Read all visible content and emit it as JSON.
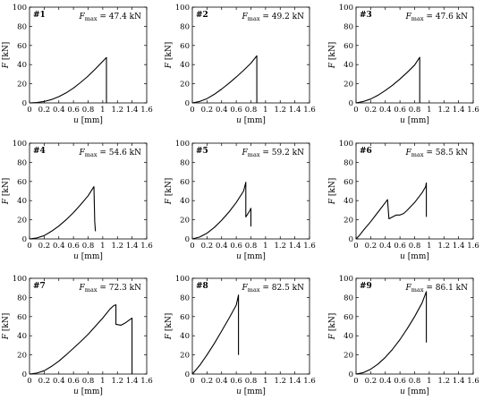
{
  "chart_data": [
    {
      "type": "line",
      "id": "#1",
      "panel_label": "#1",
      "fmax_prefix": "F",
      "fmax_subscript": "max",
      "fmax_value": "= 47.4 kN",
      "xlabel_var": "u",
      "xlabel_unit": " [mm]",
      "ylabel_var": "F",
      "ylabel_unit": " [kN]",
      "xlim": [
        0,
        1.6
      ],
      "ylim": [
        0,
        100
      ],
      "xticks": [
        "0",
        "0.2",
        "0.4",
        "0.6",
        "0.8",
        "1",
        "1.2",
        "1.4",
        "1.6"
      ],
      "yticks": [
        "0",
        "20",
        "40",
        "60",
        "80",
        "100"
      ],
      "grid": false,
      "x": [
        0,
        0.1,
        0.2,
        0.3,
        0.4,
        0.5,
        0.6,
        0.7,
        0.8,
        0.9,
        1.0,
        1.05,
        1.05
      ],
      "y": [
        0,
        0.5,
        1.5,
        3.5,
        6.5,
        10.5,
        15.5,
        21.5,
        28,
        35.5,
        43.5,
        47.4,
        0
      ]
    },
    {
      "type": "line",
      "id": "#2",
      "panel_label": "#2",
      "fmax_prefix": "F",
      "fmax_subscript": "max",
      "fmax_value": "= 49.2 kN",
      "xlabel_var": "u",
      "xlabel_unit": " [mm]",
      "ylabel_var": "F",
      "ylabel_unit": " [kN]",
      "xlim": [
        0,
        1.6
      ],
      "ylim": [
        0,
        100
      ],
      "xticks": [
        "0",
        "0.2",
        "0.4",
        "0.6",
        "0.8",
        "1",
        "1.2",
        "1.4",
        "1.6"
      ],
      "yticks": [
        "0",
        "20",
        "40",
        "60",
        "80",
        "100"
      ],
      "grid": false,
      "x": [
        0,
        0.1,
        0.2,
        0.3,
        0.4,
        0.5,
        0.6,
        0.7,
        0.8,
        0.88,
        0.88
      ],
      "y": [
        0,
        1.5,
        4.5,
        9,
        14.5,
        20.5,
        27,
        34,
        41.5,
        49.2,
        0
      ]
    },
    {
      "type": "line",
      "id": "#3",
      "panel_label": "#3",
      "fmax_prefix": "F",
      "fmax_subscript": "max",
      "fmax_value": "= 47.6 kN",
      "xlabel_var": "u",
      "xlabel_unit": " [mm]",
      "ylabel_var": "F",
      "ylabel_unit": " [kN]",
      "xlim": [
        0,
        1.6
      ],
      "ylim": [
        0,
        100
      ],
      "xticks": [
        "0",
        "0.2",
        "0.4",
        "0.6",
        "0.8",
        "1",
        "1.2",
        "1.4",
        "1.6"
      ],
      "yticks": [
        "0",
        "20",
        "40",
        "60",
        "80",
        "100"
      ],
      "grid": false,
      "x": [
        0,
        0.1,
        0.2,
        0.3,
        0.4,
        0.5,
        0.6,
        0.7,
        0.8,
        0.87,
        0.87
      ],
      "y": [
        0,
        1.5,
        4,
        8,
        13,
        18.5,
        25,
        32,
        39.5,
        47.6,
        0
      ]
    },
    {
      "type": "line",
      "id": "#4",
      "panel_label": "#4",
      "fmax_prefix": "F",
      "fmax_subscript": "max",
      "fmax_value": "= 54.6 kN",
      "xlabel_var": "u",
      "xlabel_unit": " [mm]",
      "ylabel_var": "F",
      "ylabel_unit": " [kN]",
      "xlim": [
        0,
        1.6
      ],
      "ylim": [
        0,
        100
      ],
      "xticks": [
        "0",
        "0.2",
        "0.4",
        "0.6",
        "0.8",
        "1",
        "1.2",
        "1.4",
        "1.6"
      ],
      "yticks": [
        "0",
        "20",
        "40",
        "60",
        "80",
        "100"
      ],
      "grid": false,
      "x": [
        0,
        0.1,
        0.2,
        0.3,
        0.4,
        0.5,
        0.6,
        0.7,
        0.8,
        0.88,
        0.89,
        0.9
      ],
      "y": [
        0,
        1,
        3.5,
        8,
        13.5,
        20,
        27.5,
        36,
        45,
        54.6,
        18,
        8
      ]
    },
    {
      "type": "line",
      "id": "#5",
      "panel_label": "#5",
      "fmax_prefix": "F",
      "fmax_subscript": "max",
      "fmax_value": "= 59.2 kN",
      "xlabel_var": "u",
      "xlabel_unit": " [mm]",
      "ylabel_var": "F",
      "ylabel_unit": " [kN]",
      "xlim": [
        0,
        1.6
      ],
      "ylim": [
        0,
        100
      ],
      "xticks": [
        "0",
        "0.2",
        "0.4",
        "0.6",
        "0.8",
        "1",
        "1.2",
        "1.4",
        "1.6"
      ],
      "yticks": [
        "0",
        "20",
        "40",
        "60",
        "80",
        "100"
      ],
      "grid": false,
      "x": [
        0,
        0.1,
        0.2,
        0.3,
        0.4,
        0.5,
        0.6,
        0.7,
        0.73,
        0.73,
        0.78,
        0.8,
        0.8
      ],
      "y": [
        0,
        2,
        6,
        12,
        19.5,
        28,
        38,
        50,
        59.2,
        23,
        29,
        32,
        13
      ]
    },
    {
      "type": "line",
      "id": "#6",
      "panel_label": "#6",
      "fmax_prefix": "F",
      "fmax_subscript": "max",
      "fmax_value": "= 58.5 kN",
      "xlabel_var": "u",
      "xlabel_unit": " [mm]",
      "ylabel_var": "F",
      "ylabel_unit": " [kN]",
      "xlim": [
        0,
        1.6
      ],
      "ylim": [
        0,
        100
      ],
      "xticks": [
        "0",
        "0.2",
        "0.4",
        "0.6",
        "0.8",
        "1",
        "1.2",
        "1.4",
        "1.6"
      ],
      "yticks": [
        "0",
        "20",
        "40",
        "60",
        "80",
        "100"
      ],
      "grid": false,
      "x": [
        0,
        0.05,
        0.1,
        0.2,
        0.3,
        0.4,
        0.43,
        0.45,
        0.5,
        0.55,
        0.6,
        0.65,
        0.7,
        0.8,
        0.9,
        0.95,
        0.96,
        0.96
      ],
      "y": [
        0,
        4,
        9,
        18,
        28,
        38,
        41,
        21,
        23,
        25,
        25,
        26.5,
        30,
        38,
        48,
        54.5,
        58.5,
        23
      ]
    },
    {
      "type": "line",
      "id": "#7",
      "panel_label": "#7",
      "fmax_prefix": "F",
      "fmax_subscript": "max",
      "fmax_value": "= 72.3 kN",
      "xlabel_var": "u",
      "xlabel_unit": " [mm]",
      "ylabel_var": "F",
      "ylabel_unit": " [kN]",
      "xlim": [
        0,
        1.6
      ],
      "ylim": [
        0,
        100
      ],
      "xticks": [
        "0",
        "0.2",
        "0.4",
        "0.6",
        "0.8",
        "1",
        "1.2",
        "1.4",
        "1.6"
      ],
      "yticks": [
        "0",
        "20",
        "40",
        "60",
        "80",
        "100"
      ],
      "grid": false,
      "x": [
        0,
        0.1,
        0.2,
        0.3,
        0.4,
        0.5,
        0.6,
        0.7,
        0.8,
        0.9,
        1.0,
        1.1,
        1.15,
        1.18,
        1.18,
        1.25,
        1.3,
        1.4,
        1.4
      ],
      "y": [
        0,
        1,
        3.5,
        8,
        13.5,
        20,
        27,
        34,
        41.5,
        50,
        58.5,
        68,
        71.5,
        72.3,
        52,
        51,
        53,
        58.5,
        0
      ]
    },
    {
      "type": "line",
      "id": "#8",
      "panel_label": "#8",
      "fmax_prefix": "F",
      "fmax_subscript": "max",
      "fmax_value": "= 82.5 kN",
      "xlabel_var": "u",
      "xlabel_unit": " [mm]",
      "ylabel_var": "F",
      "ylabel_unit": " [kN]",
      "xlim": [
        0,
        1.6
      ],
      "ylim": [
        0,
        100
      ],
      "xticks": [
        "0",
        "0.2",
        "0.4",
        "0.6",
        "0.8",
        "1",
        "1.2",
        "1.4",
        "1.6"
      ],
      "yticks": [
        "0",
        "20",
        "40",
        "60",
        "80",
        "100"
      ],
      "grid": false,
      "x": [
        0,
        0.1,
        0.2,
        0.3,
        0.4,
        0.5,
        0.6,
        0.63,
        0.63
      ],
      "y": [
        0,
        9,
        20,
        32,
        45,
        58,
        72,
        82.5,
        20
      ]
    },
    {
      "type": "line",
      "id": "#9",
      "panel_label": "#9",
      "fmax_prefix": "F",
      "fmax_subscript": "max",
      "fmax_value": "= 86.1 kN",
      "xlabel_var": "u",
      "xlabel_unit": " [mm]",
      "ylabel_var": "F",
      "ylabel_unit": " [kN]",
      "xlim": [
        0,
        1.6
      ],
      "ylim": [
        0,
        100
      ],
      "xticks": [
        "0",
        "0.2",
        "0.4",
        "0.6",
        "0.8",
        "1",
        "1.2",
        "1.4",
        "1.6"
      ],
      "yticks": [
        "0",
        "20",
        "40",
        "60",
        "80",
        "100"
      ],
      "grid": false,
      "x": [
        0,
        0.1,
        0.2,
        0.3,
        0.4,
        0.5,
        0.6,
        0.7,
        0.8,
        0.9,
        0.96,
        0.96
      ],
      "y": [
        0,
        1.5,
        5,
        10.5,
        17.5,
        26,
        36,
        47.5,
        60,
        74,
        86.1,
        33
      ]
    }
  ]
}
